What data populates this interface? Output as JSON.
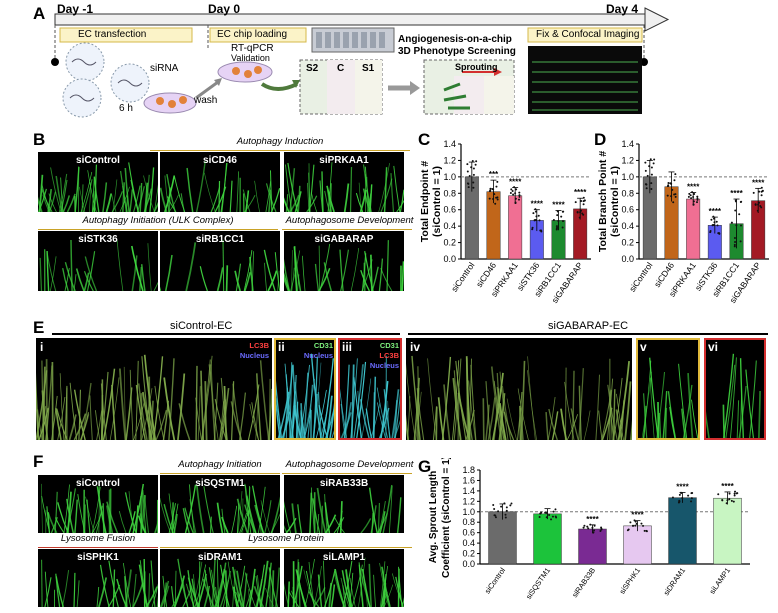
{
  "panels": {
    "A": {
      "label": "A",
      "days": [
        "Day -1",
        "Day 0",
        "Day 4"
      ],
      "boxes": [
        "EC transfection",
        "EC chip loading",
        "Fix & Confocal Imaging"
      ],
      "sirna": "siRNA",
      "hours": "6 h",
      "wash": "wash",
      "rtqpcr": "RT-qPCR",
      "validation": "Validation",
      "chip_title": "Angiogenesis-on-a-chip",
      "chip_subtitle": "3D Phenotype Screening",
      "chip_labels": [
        "S2",
        "C",
        "S1"
      ],
      "sprouting": "Sprouting"
    },
    "B": {
      "label": "B",
      "group1": "Autophagy Induction",
      "group2": "Autophagy Initiation (ULK Complex)",
      "group3": "Autophagosome Development",
      "images": [
        "siControl",
        "siCD46",
        "siPRKAA1",
        "siSTK36",
        "siRB1CC1",
        "siGABARAP"
      ]
    },
    "C": {
      "label": "C"
    },
    "D": {
      "label": "D"
    },
    "E": {
      "label": "E",
      "left_title": "siControl-EC",
      "right_title": "siGABARAP-EC",
      "sub": [
        "i",
        "ii",
        "iii",
        "iv",
        "v",
        "vi"
      ],
      "stain_i": [
        "LC3B",
        "Nucleus"
      ],
      "stain_ii": [
        "CD31",
        "Nucleus"
      ],
      "stain_iii": [
        "CD31",
        "LC3B",
        "Nucleus"
      ]
    },
    "F": {
      "label": "F",
      "group1": "Autophagy Initiation",
      "group2": "Autophagosome Development",
      "group3": "Lysosome Fusion",
      "group4": "Lysosome Protein",
      "images": [
        "siControl",
        "siSQSTM1",
        "siRAB33B",
        "siSPHK1",
        "siDRAM1",
        "siLAMP1"
      ]
    },
    "G": {
      "label": "G"
    }
  },
  "chart_data": [
    {
      "id": "C",
      "type": "bar",
      "ylabel": "Total Endpoint #",
      "ylabel2": "(siControl = 1)",
      "ylim": [
        0,
        1.4
      ],
      "yticks": [
        "0.0",
        "0.2",
        "0.4",
        "0.6",
        "0.8",
        "1.0",
        "1.2",
        "1.4"
      ],
      "categories": [
        "siControl",
        "siCD46",
        "siPRKAA1",
        "siSTK36",
        "siRB1CC1",
        "siGABARAP"
      ],
      "values": [
        1.0,
        0.82,
        0.77,
        0.47,
        0.47,
        0.61
      ],
      "errors": [
        0.18,
        0.14,
        0.1,
        0.13,
        0.12,
        0.13
      ],
      "sig": [
        "",
        "***",
        "****",
        "****",
        "****",
        "****"
      ],
      "colors": [
        "#6b6b6b",
        "#c1661a",
        "#f06f93",
        "#5b5bf0",
        "#1d8a2f",
        "#a31a24"
      ],
      "reference": 1.0
    },
    {
      "id": "D",
      "type": "bar",
      "ylabel": "Total Branch Point #",
      "ylabel2": "(siControl = 1)",
      "ylim": [
        0,
        1.4
      ],
      "yticks": [
        "0.0",
        "0.2",
        "0.4",
        "0.6",
        "0.8",
        "1.0",
        "1.2",
        "1.4"
      ],
      "categories": [
        "siControl",
        "siCD46",
        "siPRKAA1",
        "siSTK36",
        "siRB1CC1",
        "siGABARAP"
      ],
      "values": [
        1.0,
        0.88,
        0.73,
        0.41,
        0.43,
        0.71
      ],
      "errors": [
        0.2,
        0.18,
        0.08,
        0.1,
        0.3,
        0.15
      ],
      "sig": [
        "",
        "",
        "****",
        "****",
        "****",
        "****"
      ],
      "colors": [
        "#6b6b6b",
        "#c1661a",
        "#f06f93",
        "#5b5bf0",
        "#1d8a2f",
        "#a31a24"
      ],
      "reference": 1.0
    },
    {
      "id": "G",
      "type": "bar",
      "ylabel": "Avg. Sprout Length",
      "ylabel2": "Coefficient (siControl = 1)",
      "ylim": [
        0,
        1.8
      ],
      "yticks": [
        "0.0",
        "0.2",
        "0.4",
        "0.6",
        "0.8",
        "1.0",
        "1.2",
        "1.4",
        "1.6",
        "1.8"
      ],
      "categories": [
        "siControl",
        "siSQSTM1",
        "siRAB33B",
        "siSPHK1",
        "siDRAM1",
        "siLAMP1"
      ],
      "values": [
        1.0,
        0.96,
        0.67,
        0.73,
        1.27,
        1.26
      ],
      "errors": [
        0.15,
        0.1,
        0.08,
        0.1,
        0.1,
        0.12
      ],
      "sig": [
        "",
        "",
        "****",
        "****",
        "****",
        "****"
      ],
      "colors": [
        "#6b6b6b",
        "#1cc33b",
        "#7a2a93",
        "#e6c8f0",
        "#17566b",
        "#c8f5c2"
      ],
      "reference": 1.0
    }
  ]
}
